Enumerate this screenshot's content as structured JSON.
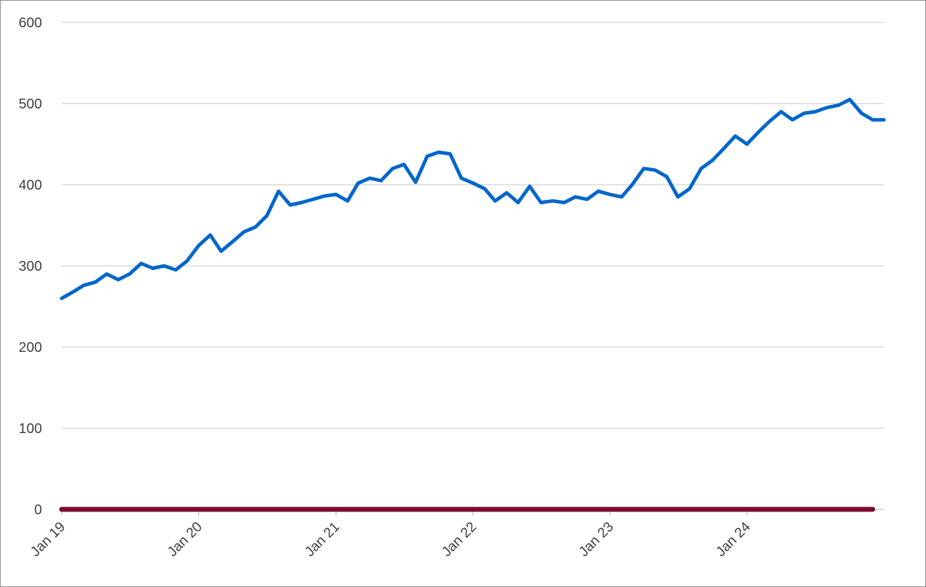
{
  "chart_data": {
    "type": "line",
    "title": "",
    "xlabel": "",
    "ylabel": "",
    "ylim": [
      0,
      600
    ],
    "yticks": [
      0,
      100,
      200,
      300,
      400,
      500,
      600
    ],
    "ytick_labels": [
      "0",
      "100",
      "200",
      "300",
      "400",
      "500",
      "600"
    ],
    "xlim": [
      "2019-01-01",
      "2024-12-31"
    ],
    "xticks": [
      "2019-01-01",
      "2020-01-01",
      "2021-01-01",
      "2022-01-01",
      "2023-01-01",
      "2024-01-01"
    ],
    "xtick_labels": [
      "Jan 19",
      "Jan 20",
      "Jan 21",
      "Jan 22",
      "Jan 23",
      "Jan 24"
    ],
    "grid": true,
    "legend": "none",
    "series": [
      {
        "color": "#0066CC",
        "x": [
          "2019-01-01",
          "2019-02-01",
          "2019-03-01",
          "2019-04-01",
          "2019-05-01",
          "2019-06-01",
          "2019-07-01",
          "2019-08-01",
          "2019-09-01",
          "2019-10-01",
          "2019-11-01",
          "2019-12-01",
          "2020-01-01",
          "2020-02-01",
          "2020-03-01",
          "2020-04-01",
          "2020-05-01",
          "2020-06-01",
          "2020-07-01",
          "2020-08-01",
          "2020-09-01",
          "2020-10-01",
          "2020-11-01",
          "2020-12-01",
          "2021-01-01",
          "2021-02-01",
          "2021-03-01",
          "2021-04-01",
          "2021-05-01",
          "2021-06-01",
          "2021-07-01",
          "2021-08-01",
          "2021-09-01",
          "2021-10-01",
          "2021-11-01",
          "2021-12-01",
          "2022-01-01",
          "2022-02-01",
          "2022-03-01",
          "2022-04-01",
          "2022-05-01",
          "2022-06-01",
          "2022-07-01",
          "2022-08-01",
          "2022-09-01",
          "2022-10-01",
          "2022-11-01",
          "2022-12-01",
          "2023-01-01",
          "2023-02-01",
          "2023-03-01",
          "2023-04-01",
          "2023-05-01",
          "2023-06-01",
          "2023-07-01",
          "2023-08-01",
          "2023-09-01",
          "2023-10-01",
          "2023-11-01",
          "2023-12-01",
          "2024-01-01",
          "2024-02-01",
          "2024-03-01",
          "2024-04-01",
          "2024-05-01",
          "2024-06-01",
          "2024-07-01",
          "2024-08-01",
          "2024-09-01",
          "2024-10-01",
          "2024-11-01",
          "2024-12-01",
          "2024-12-31"
        ],
        "values": [
          260,
          268,
          276,
          280,
          290,
          283,
          290,
          303,
          297,
          300,
          295,
          306,
          325,
          338,
          318,
          330,
          342,
          348,
          362,
          392,
          375,
          378,
          382,
          386,
          388,
          380,
          402,
          408,
          405,
          420,
          425,
          403,
          435,
          440,
          438,
          408,
          402,
          395,
          380,
          390,
          378,
          398,
          378,
          380,
          378,
          385,
          382,
          392,
          388,
          385,
          400,
          420,
          418,
          410,
          385,
          395,
          420,
          430,
          445,
          460,
          450,
          465,
          478,
          490,
          480,
          488,
          490,
          495,
          498,
          505,
          488,
          480,
          480
        ]
      },
      {
        "color": "#7A0A2E",
        "x": [
          "2019-01-01",
          "2024-12-01"
        ],
        "values": [
          0,
          0
        ]
      }
    ]
  }
}
